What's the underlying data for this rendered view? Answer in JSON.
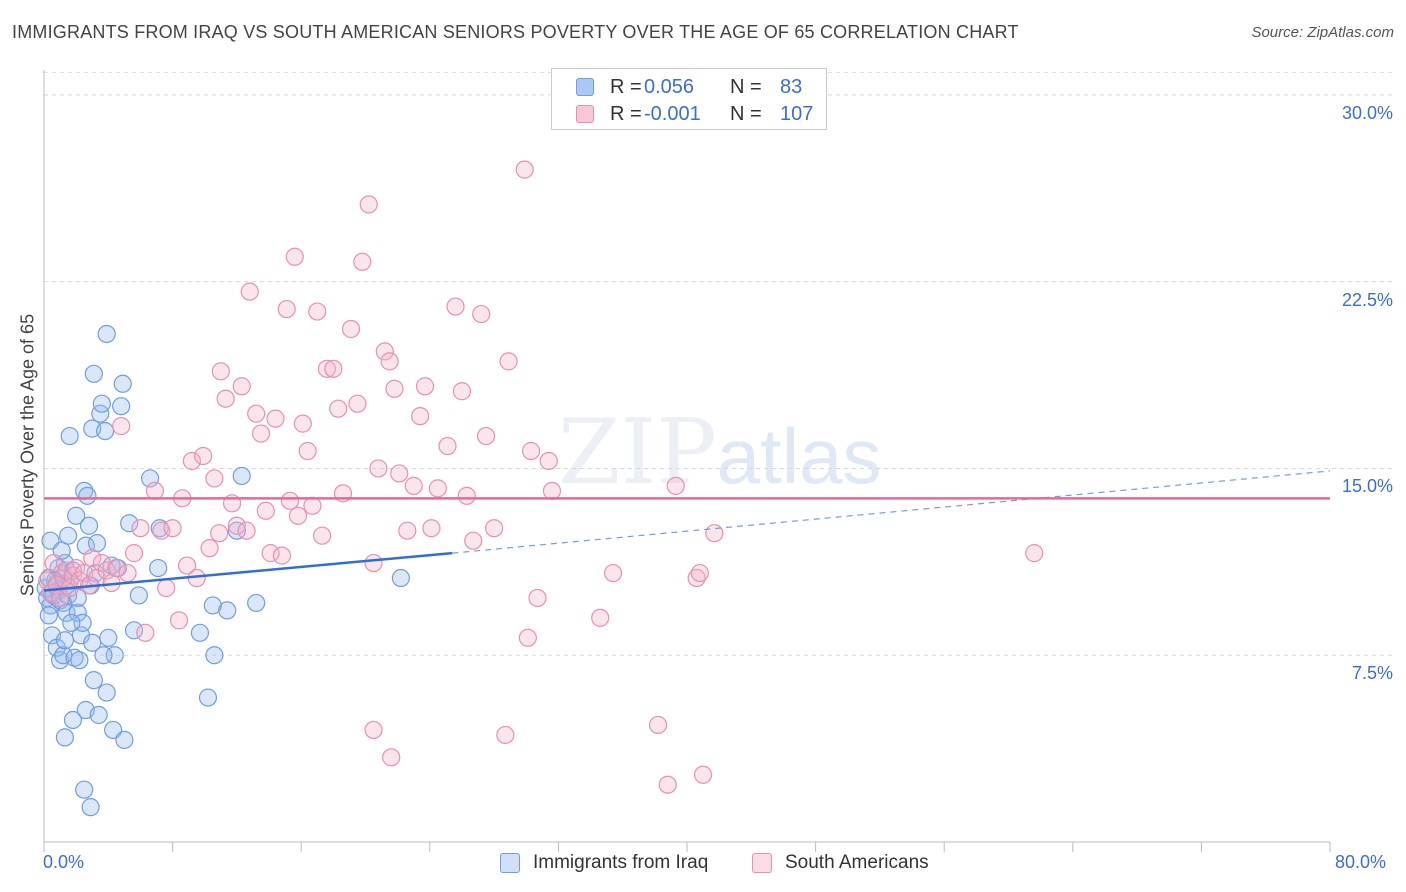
{
  "title": "IMMIGRANTS FROM IRAQ VS SOUTH AMERICAN SENIORS POVERTY OVER THE AGE OF 65 CORRELATION CHART",
  "source": "Source: ZipAtlas.com",
  "watermark": {
    "zip": "ZIP",
    "atlas": "atlas"
  },
  "legend_top": [
    {
      "r_label": "R =",
      "r_value": "0.056",
      "n_label": "N =",
      "n_value": "83",
      "color": "#a9c8f2",
      "border": "#6f9fe0"
    },
    {
      "r_label": "R =",
      "r_value": "-0.001",
      "n_label": "N =",
      "n_value": "107",
      "color": "#f8c6d6",
      "border": "#ea8fb0"
    }
  ],
  "legend_bottom": [
    {
      "label": "Immigrants from Iraq",
      "color": "#a9c8f2",
      "border": "#6f9fe0"
    },
    {
      "label": "South Americans",
      "color": "#f8c6d6",
      "border": "#ea8fb0"
    }
  ],
  "chart_data": {
    "type": "scatter",
    "title": "IMMIGRANTS FROM IRAQ VS SOUTH AMERICAN SENIORS POVERTY OVER THE AGE OF 65 CORRELATION CHART",
    "xlabel": "",
    "ylabel": "Seniors Poverty Over the Age of 65",
    "xlim": [
      0,
      80
    ],
    "ylim": [
      0,
      31
    ],
    "x_tick_labels": {
      "left": "0.0%",
      "right": "80.0%"
    },
    "y_ticks": [
      {
        "value": 7.5,
        "label": "7.5%"
      },
      {
        "value": 15.0,
        "label": "15.0%"
      },
      {
        "value": 22.5,
        "label": "22.5%"
      },
      {
        "value": 30.0,
        "label": "30.0%"
      }
    ],
    "grid": true,
    "series": [
      {
        "name": "Immigrants from Iraq",
        "color": "#6f9fe0",
        "fill": "rgba(150,186,238,0.35)",
        "points": [
          [
            0.1,
            10.2
          ],
          [
            0.2,
            9.8
          ],
          [
            0.3,
            10.6
          ],
          [
            0.4,
            9.5
          ],
          [
            0.5,
            10.0
          ],
          [
            0.6,
            9.9
          ],
          [
            0.8,
            10.4
          ],
          [
            0.9,
            10.1
          ],
          [
            1.0,
            9.7
          ],
          [
            1.1,
            10.8
          ],
          [
            1.2,
            9.6
          ],
          [
            1.3,
            11.2
          ],
          [
            1.4,
            10.3
          ],
          [
            1.5,
            9.9
          ],
          [
            1.6,
            10.5
          ],
          [
            0.4,
            12.1
          ],
          [
            0.5,
            8.3
          ],
          [
            0.8,
            7.8
          ],
          [
            1.0,
            7.3
          ],
          [
            1.1,
            11.7
          ],
          [
            1.2,
            7.5
          ],
          [
            1.3,
            8.1
          ],
          [
            1.4,
            9.2
          ],
          [
            1.5,
            12.3
          ],
          [
            1.6,
            16.3
          ],
          [
            1.8,
            10.9
          ],
          [
            1.9,
            7.4
          ],
          [
            2.0,
            13.1
          ],
          [
            2.1,
            9.2
          ],
          [
            2.2,
            7.3
          ],
          [
            2.3,
            8.3
          ],
          [
            2.4,
            8.8
          ],
          [
            2.5,
            14.1
          ],
          [
            2.6,
            11.9
          ],
          [
            2.7,
            13.9
          ],
          [
            2.8,
            12.7
          ],
          [
            2.9,
            10.3
          ],
          [
            3.0,
            16.6
          ],
          [
            3.1,
            18.8
          ],
          [
            3.2,
            10.8
          ],
          [
            3.3,
            12.0
          ],
          [
            3.5,
            17.2
          ],
          [
            3.6,
            17.6
          ],
          [
            3.8,
            16.5
          ],
          [
            3.9,
            20.4
          ],
          [
            4.0,
            8.2
          ],
          [
            4.2,
            11.1
          ],
          [
            4.4,
            7.5
          ],
          [
            4.6,
            11.0
          ],
          [
            4.8,
            17.5
          ],
          [
            4.9,
            18.4
          ],
          [
            5.3,
            12.8
          ],
          [
            5.9,
            9.9
          ],
          [
            6.6,
            14.6
          ],
          [
            7.1,
            11.0
          ],
          [
            7.2,
            12.6
          ],
          [
            9.7,
            8.4
          ],
          [
            10.5,
            9.5
          ],
          [
            10.6,
            7.5
          ],
          [
            11.4,
            9.3
          ],
          [
            12.0,
            12.5
          ],
          [
            12.3,
            14.7
          ],
          [
            13.2,
            9.6
          ],
          [
            22.2,
            10.6
          ],
          [
            1.3,
            4.2
          ],
          [
            1.8,
            4.9
          ],
          [
            2.5,
            2.1
          ],
          [
            2.6,
            5.3
          ],
          [
            2.9,
            1.4
          ],
          [
            3.0,
            8.0
          ],
          [
            3.1,
            6.5
          ],
          [
            3.4,
            5.1
          ],
          [
            3.7,
            7.5
          ],
          [
            3.9,
            6.0
          ],
          [
            4.3,
            4.5
          ],
          [
            5.0,
            4.1
          ],
          [
            5.6,
            8.5
          ],
          [
            1.7,
            8.8
          ],
          [
            2.1,
            9.8
          ],
          [
            0.7,
            10.5
          ],
          [
            0.9,
            11.0
          ],
          [
            10.2,
            5.8
          ],
          [
            0.3,
            9.1
          ]
        ],
        "trend": {
          "x1": 0,
          "y1": 10.1,
          "x2": 25.4,
          "y2": 11.6,
          "dashed_to_x": 80,
          "dashed_to_y": 14.9
        }
      },
      {
        "name": "South Americans",
        "color": "#ea8fb0",
        "fill": "rgba(244,180,202,0.35)",
        "points": [
          [
            0.2,
            10.5
          ],
          [
            0.4,
            10.0
          ],
          [
            0.6,
            11.2
          ],
          [
            0.8,
            10.3
          ],
          [
            1.0,
            9.8
          ],
          [
            1.2,
            10.6
          ],
          [
            1.4,
            10.9
          ],
          [
            1.6,
            10.2
          ],
          [
            1.8,
            10.7
          ],
          [
            2.0,
            11.0
          ],
          [
            2.2,
            10.5
          ],
          [
            2.5,
            10.8
          ],
          [
            2.8,
            10.3
          ],
          [
            3.0,
            11.4
          ],
          [
            3.3,
            10.6
          ],
          [
            3.6,
            11.2
          ],
          [
            3.9,
            10.9
          ],
          [
            4.2,
            10.4
          ],
          [
            4.5,
            11.0
          ],
          [
            4.8,
            16.7
          ],
          [
            5.2,
            10.8
          ],
          [
            5.6,
            11.6
          ],
          [
            6.0,
            12.6
          ],
          [
            6.3,
            8.4
          ],
          [
            6.9,
            14.1
          ],
          [
            7.3,
            12.5
          ],
          [
            7.6,
            10.2
          ],
          [
            8.0,
            12.6
          ],
          [
            8.4,
            8.9
          ],
          [
            8.6,
            13.8
          ],
          [
            8.9,
            11.1
          ],
          [
            9.2,
            15.3
          ],
          [
            9.5,
            10.6
          ],
          [
            9.9,
            15.5
          ],
          [
            10.3,
            11.8
          ],
          [
            10.6,
            14.6
          ],
          [
            10.9,
            12.4
          ],
          [
            11.0,
            18.9
          ],
          [
            11.3,
            17.8
          ],
          [
            11.7,
            13.6
          ],
          [
            12.0,
            12.7
          ],
          [
            12.3,
            18.3
          ],
          [
            12.6,
            12.5
          ],
          [
            12.8,
            22.1
          ],
          [
            13.2,
            17.2
          ],
          [
            13.5,
            16.4
          ],
          [
            13.8,
            13.3
          ],
          [
            14.1,
            11.6
          ],
          [
            14.4,
            17.0
          ],
          [
            14.8,
            11.5
          ],
          [
            15.1,
            21.4
          ],
          [
            15.3,
            13.7
          ],
          [
            15.6,
            23.5
          ],
          [
            15.8,
            13.1
          ],
          [
            16.1,
            16.8
          ],
          [
            16.4,
            15.7
          ],
          [
            16.7,
            13.5
          ],
          [
            17.0,
            21.3
          ],
          [
            17.3,
            12.3
          ],
          [
            17.6,
            19.0
          ],
          [
            18.0,
            19.0
          ],
          [
            18.3,
            17.4
          ],
          [
            18.6,
            14.0
          ],
          [
            19.1,
            20.6
          ],
          [
            19.5,
            17.6
          ],
          [
            19.8,
            23.3
          ],
          [
            20.2,
            25.6
          ],
          [
            20.5,
            11.2
          ],
          [
            20.8,
            15.0
          ],
          [
            21.2,
            19.7
          ],
          [
            21.5,
            19.3
          ],
          [
            21.8,
            18.2
          ],
          [
            22.1,
            14.8
          ],
          [
            22.6,
            12.5
          ],
          [
            23.0,
            14.3
          ],
          [
            23.4,
            17.1
          ],
          [
            23.7,
            18.3
          ],
          [
            24.1,
            12.6
          ],
          [
            24.5,
            14.2
          ],
          [
            25.1,
            15.9
          ],
          [
            25.6,
            21.5
          ],
          [
            26.0,
            18.1
          ],
          [
            26.3,
            13.9
          ],
          [
            26.7,
            12.1
          ],
          [
            27.2,
            21.2
          ],
          [
            27.5,
            16.3
          ],
          [
            28.0,
            12.6
          ],
          [
            28.9,
            19.3
          ],
          [
            29.9,
            27.0
          ],
          [
            30.3,
            15.7
          ],
          [
            30.7,
            9.8
          ],
          [
            31.4,
            15.3
          ],
          [
            31.6,
            14.1
          ],
          [
            35.4,
            10.8
          ],
          [
            39.3,
            14.3
          ],
          [
            40.6,
            10.6
          ],
          [
            40.8,
            10.8
          ],
          [
            41.7,
            12.4
          ],
          [
            61.6,
            11.6
          ],
          [
            20.5,
            4.5
          ],
          [
            21.6,
            3.4
          ],
          [
            28.7,
            4.3
          ],
          [
            30.1,
            8.2
          ],
          [
            34.6,
            9.0
          ],
          [
            38.2,
            4.7
          ],
          [
            38.8,
            2.3
          ],
          [
            41.0,
            2.7
          ]
        ],
        "trend": {
          "x1": 0,
          "y1": 13.8,
          "x2": 80,
          "y2": 13.8
        }
      }
    ]
  }
}
